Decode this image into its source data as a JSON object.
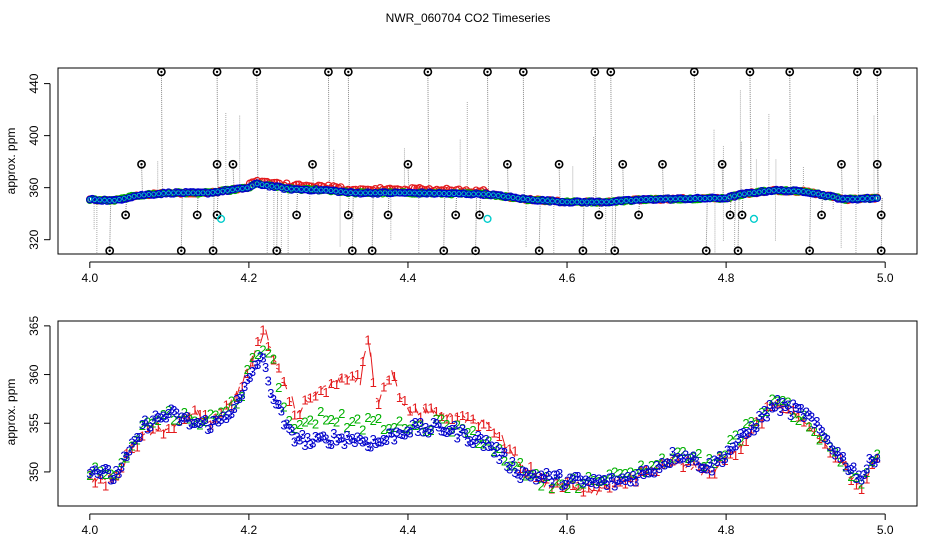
{
  "title": "NWR_060704  CO2 Timeseries",
  "colors": {
    "series1": "#e41a1c",
    "series2": "#00b000",
    "series3": "#0000cc",
    "outlier": "#000000",
    "flagged": "#00cccc",
    "dropline": "#888888"
  },
  "chart_data": [
    {
      "type": "scatter",
      "panel": "top",
      "ylabel": "approx. ppm",
      "xlim": [
        3.96,
        5.04
      ],
      "ylim": [
        309,
        452
      ],
      "xticks": [
        "4.0",
        "4.2",
        "4.4",
        "4.6",
        "4.8",
        "5.0"
      ],
      "yticks": [
        "320",
        "360",
        "400",
        "440"
      ],
      "baseline_shape": [
        [
          4.0,
          351
        ],
        [
          4.03,
          350
        ],
        [
          4.06,
          354
        ],
        [
          4.1,
          356
        ],
        [
          4.15,
          356
        ],
        [
          4.2,
          360
        ],
        [
          4.21,
          363
        ],
        [
          4.25,
          359
        ],
        [
          4.3,
          358
        ],
        [
          4.33,
          356
        ],
        [
          4.4,
          356
        ],
        [
          4.5,
          355
        ],
        [
          4.55,
          351
        ],
        [
          4.6,
          349
        ],
        [
          4.65,
          349
        ],
        [
          4.7,
          351
        ],
        [
          4.8,
          352
        ],
        [
          4.82,
          355
        ],
        [
          4.86,
          358
        ],
        [
          4.9,
          357
        ],
        [
          4.95,
          351
        ],
        [
          4.99,
          352
        ]
      ],
      "outliers": {
        "high": [
          4.09,
          4.16,
          4.21,
          4.3,
          4.325,
          4.425,
          4.5,
          4.545,
          4.635,
          4.655,
          4.76,
          4.83,
          4.88,
          4.965,
          4.99
        ],
        "mid": [
          4.065,
          4.16,
          4.18,
          4.28,
          4.4,
          4.525,
          4.59,
          4.67,
          4.72,
          4.795,
          4.945,
          4.99
        ],
        "low_340": [
          4.045,
          4.135,
          4.16,
          4.26,
          4.325,
          4.375,
          4.46,
          4.49,
          4.64,
          4.69,
          4.805,
          4.82,
          4.92,
          4.995
        ],
        "bottom_312": [
          4.025,
          4.115,
          4.155,
          4.235,
          4.33,
          4.355,
          4.445,
          4.485,
          4.565,
          4.62,
          4.66,
          4.775,
          4.815,
          4.905,
          4.995
        ]
      },
      "flagged": [
        [
          4.165,
          336
        ],
        [
          4.5,
          336
        ],
        [
          4.835,
          336
        ]
      ]
    },
    {
      "type": "scatter",
      "panel": "bottom",
      "ylabel": "approx. ppm",
      "xlim": [
        3.96,
        5.04
      ],
      "ylim": [
        346.5,
        365.5
      ],
      "xticks": [
        "4.0",
        "4.2",
        "4.4",
        "4.6",
        "4.8",
        "5.0"
      ],
      "yticks": [
        "350",
        "355",
        "360",
        "365"
      ],
      "series": [
        {
          "marker": "1",
          "values": [
            [
              4.0,
              349.5
            ],
            [
              4.03,
              349
            ],
            [
              4.05,
              352
            ],
            [
              4.07,
              354
            ],
            [
              4.1,
              354.5
            ],
            [
              4.13,
              356
            ],
            [
              4.16,
              355
            ],
            [
              4.19,
              359
            ],
            [
              4.205,
              362
            ],
            [
              4.22,
              364.5
            ],
            [
              4.24,
              360
            ],
            [
              4.26,
              356
            ],
            [
              4.29,
              358.5
            ],
            [
              4.32,
              360
            ],
            [
              4.34,
              359.5
            ],
            [
              4.35,
              364
            ],
            [
              4.36,
              357
            ],
            [
              4.38,
              360
            ],
            [
              4.4,
              356
            ],
            [
              4.45,
              356
            ],
            [
              4.5,
              355
            ],
            [
              4.54,
              351
            ],
            [
              4.57,
              349
            ],
            [
              4.62,
              348
            ],
            [
              4.66,
              348.5
            ],
            [
              4.7,
              350
            ],
            [
              4.74,
              351
            ],
            [
              4.78,
              350
            ],
            [
              4.82,
              353
            ],
            [
              4.86,
              357
            ],
            [
              4.9,
              355
            ],
            [
              4.95,
              350.5
            ],
            [
              4.97,
              348.5
            ],
            [
              4.99,
              351.5
            ]
          ]
        },
        {
          "marker": "2",
          "values": [
            [
              4.0,
              350
            ],
            [
              4.03,
              350
            ],
            [
              4.05,
              352.5
            ],
            [
              4.07,
              355
            ],
            [
              4.1,
              356
            ],
            [
              4.13,
              355.5
            ],
            [
              4.16,
              355.5
            ],
            [
              4.19,
              358
            ],
            [
              4.205,
              362
            ],
            [
              4.215,
              363
            ],
            [
              4.23,
              361.5
            ],
            [
              4.25,
              355
            ],
            [
              4.28,
              355.5
            ],
            [
              4.3,
              356
            ],
            [
              4.33,
              355
            ],
            [
              4.36,
              355
            ],
            [
              4.4,
              354.5
            ],
            [
              4.45,
              355
            ],
            [
              4.5,
              353
            ],
            [
              4.54,
              350.5
            ],
            [
              4.57,
              349
            ],
            [
              4.62,
              349
            ],
            [
              4.66,
              349.5
            ],
            [
              4.7,
              350.5
            ],
            [
              4.74,
              352
            ],
            [
              4.78,
              351
            ],
            [
              4.82,
              354
            ],
            [
              4.86,
              357.5
            ],
            [
              4.9,
              355.5
            ],
            [
              4.95,
              350.5
            ],
            [
              4.97,
              349
            ],
            [
              4.99,
              352
            ]
          ]
        },
        {
          "marker": "3",
          "values": [
            [
              4.0,
              350.5
            ],
            [
              4.03,
              349.5
            ],
            [
              4.05,
              352
            ],
            [
              4.07,
              355
            ],
            [
              4.1,
              356
            ],
            [
              4.13,
              355
            ],
            [
              4.16,
              355
            ],
            [
              4.19,
              357.5
            ],
            [
              4.205,
              360.5
            ],
            [
              4.215,
              362
            ],
            [
              4.23,
              358
            ],
            [
              4.25,
              354
            ],
            [
              4.28,
              353
            ],
            [
              4.3,
              353.5
            ],
            [
              4.33,
              353.5
            ],
            [
              4.36,
              353
            ],
            [
              4.4,
              354.5
            ],
            [
              4.45,
              354.5
            ],
            [
              4.5,
              353
            ],
            [
              4.54,
              350
            ],
            [
              4.57,
              349.5
            ],
            [
              4.62,
              349
            ],
            [
              4.66,
              349
            ],
            [
              4.7,
              350
            ],
            [
              4.74,
              352
            ],
            [
              4.78,
              350.5
            ],
            [
              4.82,
              353.5
            ],
            [
              4.86,
              357
            ],
            [
              4.9,
              356
            ],
            [
              4.95,
              351
            ],
            [
              4.97,
              349.5
            ],
            [
              4.99,
              352
            ]
          ]
        }
      ]
    }
  ]
}
